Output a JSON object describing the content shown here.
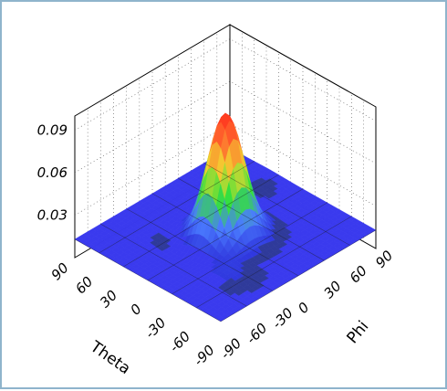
{
  "chart_data": {
    "type": "surface3d",
    "title": "",
    "xlabel": "Theta",
    "ylabel": "Phi",
    "zlabel": "",
    "x_ticks": [
      "90",
      "60",
      "30",
      "0",
      "-30",
      "-60",
      "-90"
    ],
    "y_ticks": [
      "90",
      "60",
      "30",
      "0",
      "-30",
      "-60",
      "-90"
    ],
    "z_ticks": [
      "0.03",
      "0.06",
      "0.09"
    ],
    "xlim": [
      -90,
      90
    ],
    "ylim": [
      -90,
      90
    ],
    "zlim": [
      0,
      0.1
    ],
    "grid": true,
    "colormap": [
      "#2a2ad8",
      "#4a7bff",
      "#34e23a",
      "#f2d531",
      "#ff6b2f",
      "#ff2a1a"
    ],
    "peak": {
      "theta": 0,
      "phi": 0,
      "value": 0.1
    },
    "baseline": 0.013
  }
}
